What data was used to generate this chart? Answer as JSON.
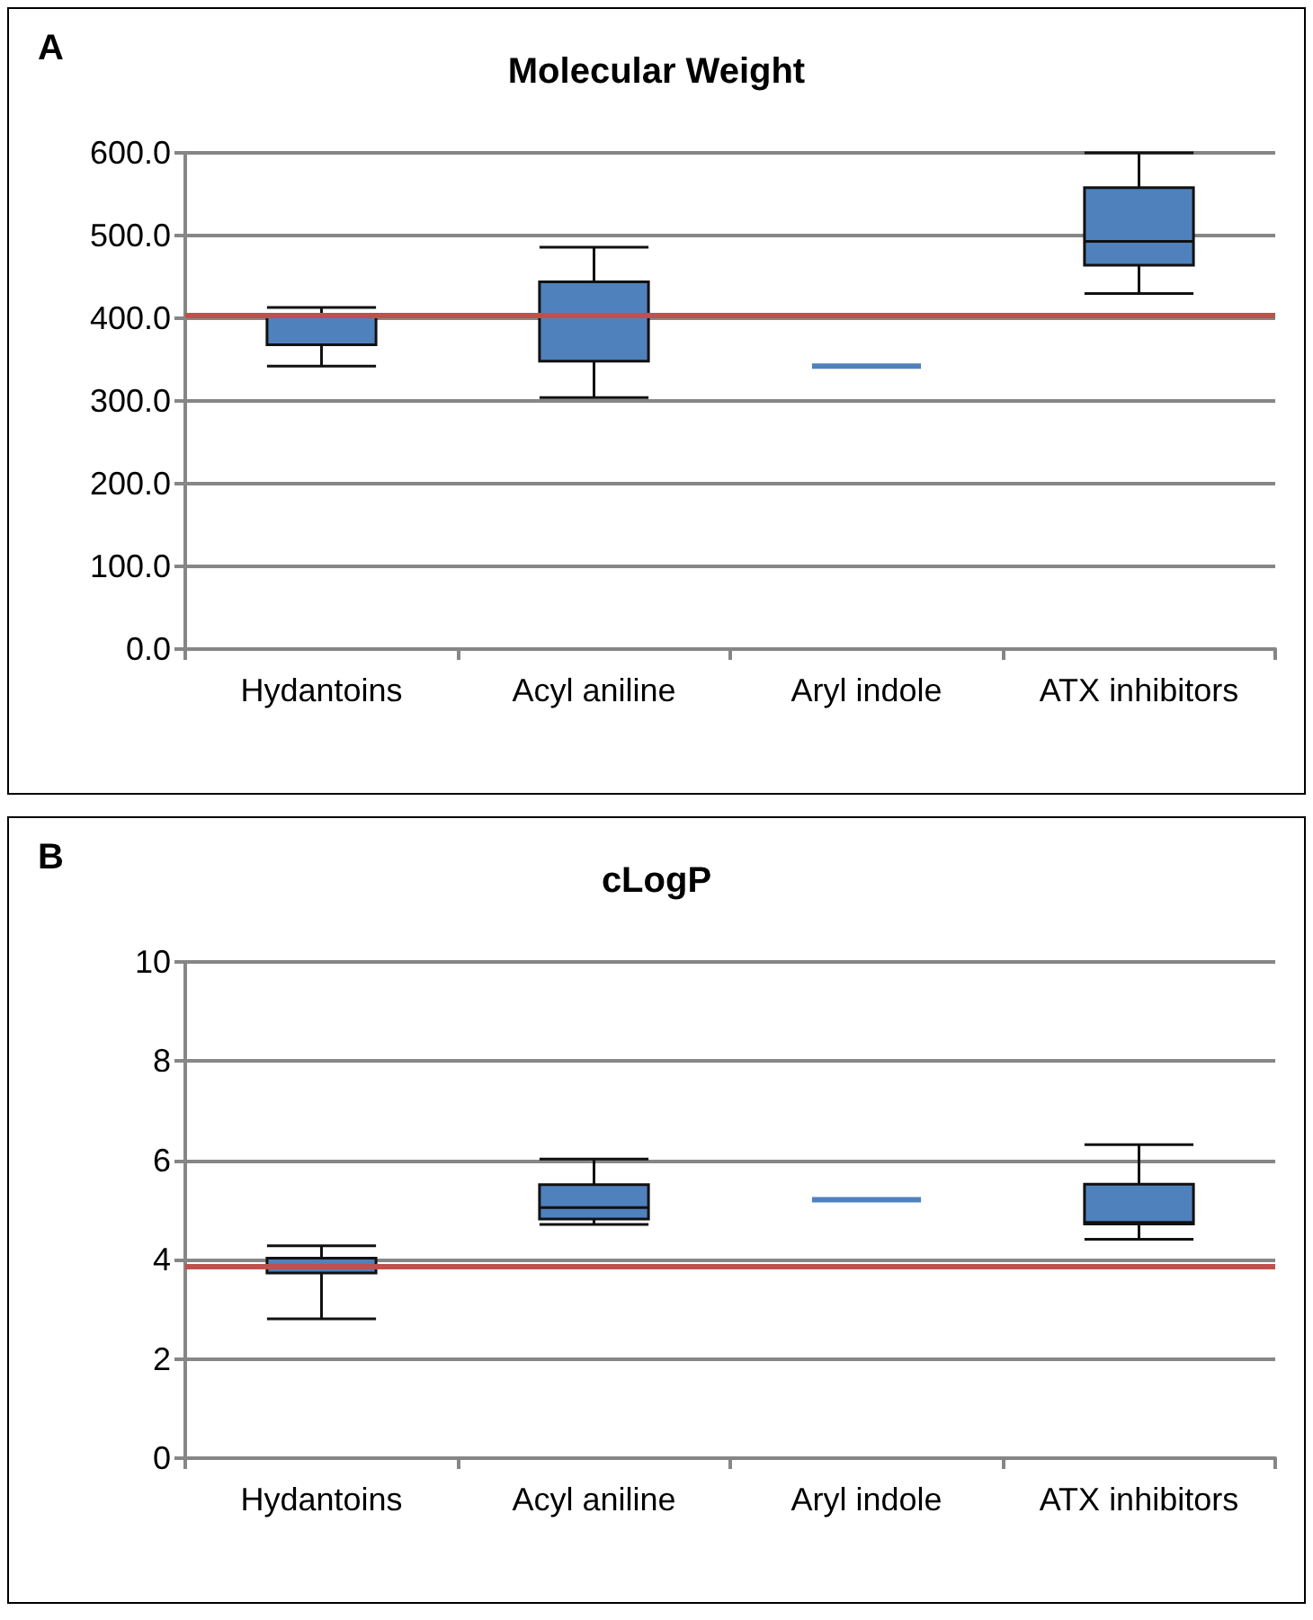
{
  "chart_data": [
    {
      "type": "box",
      "title": "Molecular Weight",
      "annotations": [
        "A"
      ],
      "categories": [
        "Hydantoins",
        "Acyl aniline",
        "Aryl indole",
        "ATX inhibitors"
      ],
      "color": "#4f81bd",
      "boxes": [
        {
          "low": 342,
          "q1": 368,
          "median": 402,
          "q3": 402,
          "high": 413
        },
        {
          "low": 304,
          "q1": 348,
          "median": 404,
          "q3": 444,
          "high": 486
        },
        {
          "low": 342,
          "q1": 342,
          "median": 342,
          "q3": 342,
          "high": 342
        },
        {
          "low": 430,
          "q1": 464,
          "median": 493,
          "q3": 558,
          "high": 600
        }
      ],
      "ylim": [
        0,
        600
      ],
      "yticks": [
        {
          "value": 0,
          "label": "0.0"
        },
        {
          "value": 100,
          "label": "100.0"
        },
        {
          "value": 200,
          "label": "200.0"
        },
        {
          "value": 300,
          "label": "300.0"
        },
        {
          "value": 400,
          "label": "400.0"
        },
        {
          "value": 500,
          "label": "500.0"
        },
        {
          "value": 600,
          "label": "600.0"
        }
      ],
      "grid": "y",
      "ref_lines": [
        {
          "axis": "y",
          "value": 404,
          "color": "#c0504d"
        }
      ]
    },
    {
      "type": "box",
      "title": "cLogP",
      "annotations": [
        "B"
      ],
      "categories": [
        "Hydantoins",
        "Acyl aniline",
        "Aryl indole",
        "ATX inhibitors"
      ],
      "color": "#4f81bd",
      "boxes": [
        {
          "low": 2.81,
          "q1": 3.73,
          "median": 3.87,
          "q3": 4.03,
          "high": 4.28
        },
        {
          "low": 4.71,
          "q1": 4.82,
          "median": 5.05,
          "q3": 5.51,
          "high": 6.03
        },
        {
          "low": 5.21,
          "q1": 5.21,
          "median": 5.21,
          "q3": 5.21,
          "high": 5.21
        },
        {
          "low": 4.41,
          "q1": 4.72,
          "median": 4.75,
          "q3": 5.52,
          "high": 6.32
        }
      ],
      "ylim": [
        0,
        10
      ],
      "yticks": [
        0,
        2,
        4,
        6,
        8,
        10
      ],
      "grid": "y",
      "ref_lines": [
        {
          "axis": "y",
          "value": 3.87,
          "color": "#c0504d"
        }
      ]
    }
  ]
}
